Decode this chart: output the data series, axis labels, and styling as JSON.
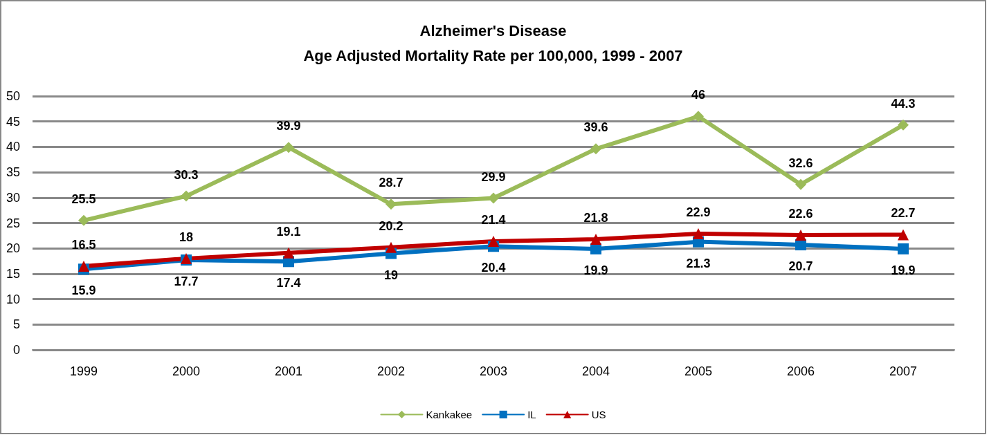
{
  "chart_data": {
    "type": "line",
    "title": "Alzheimer's Disease",
    "subtitle": "Age Adjusted Mortality Rate per 100,000, 1999 - 2007",
    "categories": [
      "1999",
      "2000",
      "2001",
      "2002",
      "2003",
      "2004",
      "2005",
      "2006",
      "2007"
    ],
    "series": [
      {
        "name": "Kankakee",
        "color": "#9bbb59",
        "marker": "diamond",
        "values": [
          25.5,
          30.3,
          39.9,
          28.7,
          29.9,
          39.6,
          46,
          32.6,
          44.3
        ]
      },
      {
        "name": "IL",
        "color": "#0070c0",
        "marker": "square",
        "values": [
          15.9,
          17.7,
          17.4,
          19,
          20.4,
          19.9,
          21.3,
          20.7,
          19.9
        ]
      },
      {
        "name": "US",
        "color": "#c00000",
        "marker": "triangle",
        "values": [
          16.5,
          18,
          19.1,
          20.2,
          21.4,
          21.8,
          22.9,
          22.6,
          22.7
        ]
      }
    ],
    "ylim": [
      0,
      50
    ],
    "yticks": [
      0,
      5,
      10,
      15,
      20,
      25,
      30,
      35,
      40,
      45,
      50
    ],
    "grid": "y",
    "legend": "bottom",
    "data_labels": true,
    "line_style": "solid"
  }
}
